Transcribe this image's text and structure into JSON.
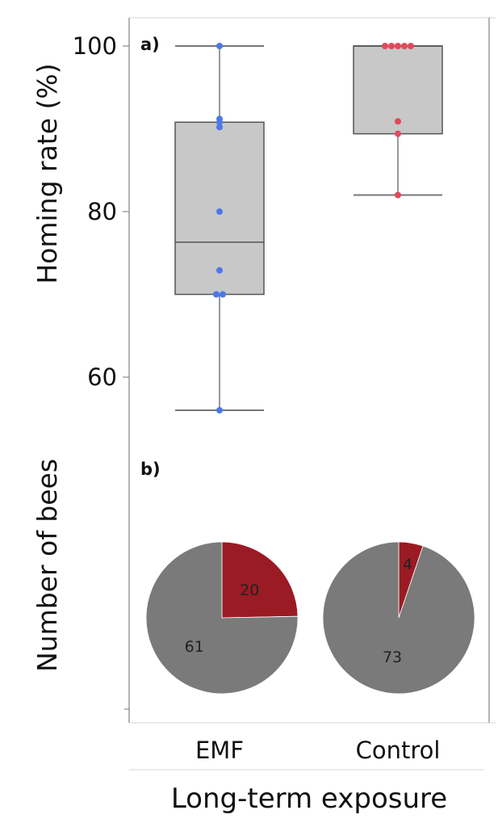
{
  "chart_data": [
    {
      "type": "box",
      "panel_label": "a)",
      "ylabel": "Homing rate (%)",
      "ylim": [
        55,
        102
      ],
      "yticks": [
        60,
        80,
        100
      ],
      "categories": [
        "EMF",
        "Control"
      ],
      "boxes": [
        {
          "category": "EMF",
          "whisker_low": 56,
          "q1": 70,
          "median": 76.3,
          "q3": 90.8,
          "whisker_high": 100,
          "points": [
            100,
            91.2,
            90.8,
            90.2,
            80,
            72.9,
            70,
            70,
            56
          ]
        },
        {
          "category": "Control",
          "whisker_low": 82,
          "q1": 89.4,
          "median": 100,
          "q3": 100,
          "whisker_high": 100,
          "points": [
            100,
            100,
            100,
            100,
            100,
            90.9,
            89.4,
            82
          ]
        }
      ],
      "colors": {
        "EMF": "#4c78e8",
        "Control": "#e04a5a",
        "box_fill": "#c8c8c8",
        "box_stroke": "#555555"
      }
    },
    {
      "type": "pie",
      "panel_label": "b)",
      "ylabel": "Number of bees",
      "pies": [
        {
          "category": "EMF",
          "slices": [
            {
              "value": 20,
              "color": "#9a1b24"
            },
            {
              "value": 61,
              "color": "#7a7a7a"
            }
          ]
        },
        {
          "category": "Control",
          "slices": [
            {
              "value": 4,
              "color": "#9a1b24"
            },
            {
              "value": 73,
              "color": "#7a7a7a"
            }
          ]
        }
      ]
    }
  ],
  "xlabel": "Long-term exposure"
}
